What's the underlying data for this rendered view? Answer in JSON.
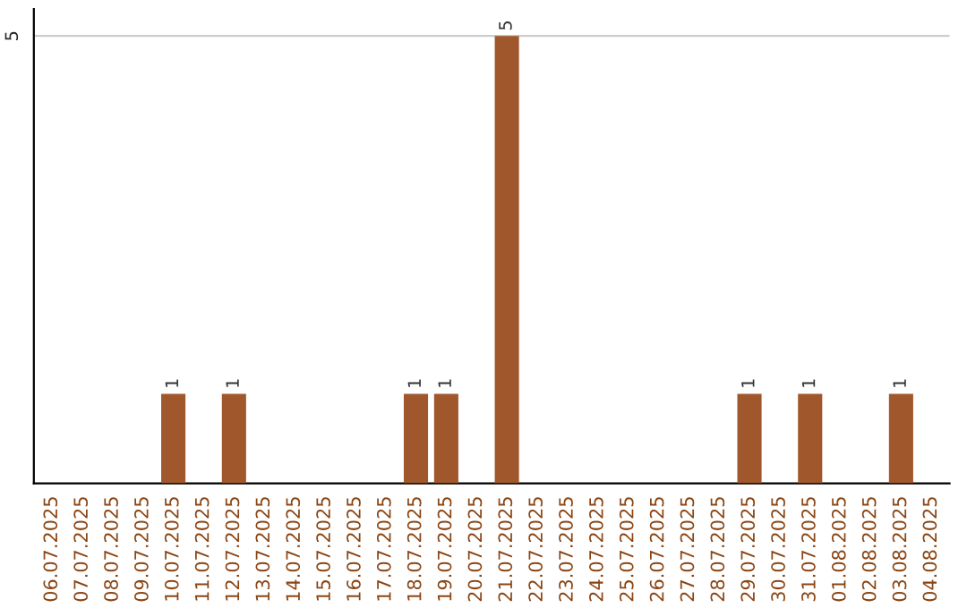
{
  "chart_data": {
    "type": "bar",
    "categories": [
      "06.07.2025",
      "07.07.2025",
      "08.07.2025",
      "09.07.2025",
      "10.07.2025",
      "11.07.2025",
      "12.07.2025",
      "13.07.2025",
      "14.07.2025",
      "15.07.2025",
      "16.07.2025",
      "17.07.2025",
      "18.07.2025",
      "19.07.2025",
      "20.07.2025",
      "21.07.2025",
      "22.07.2025",
      "23.07.2025",
      "24.07.2025",
      "25.07.2025",
      "26.07.2025",
      "27.07.2025",
      "28.07.2025",
      "29.07.2025",
      "30.07.2025",
      "31.07.2025",
      "01.08.2025",
      "02.08.2025",
      "03.08.2025",
      "04.08.2025"
    ],
    "values": [
      0,
      0,
      0,
      0,
      1,
      0,
      1,
      0,
      0,
      0,
      0,
      0,
      1,
      1,
      0,
      5,
      0,
      0,
      0,
      0,
      0,
      0,
      0,
      1,
      0,
      1,
      0,
      0,
      1,
      0
    ],
    "value_labels": [
      null,
      null,
      null,
      null,
      "1",
      null,
      "1",
      null,
      null,
      null,
      null,
      null,
      "1",
      "1",
      null,
      "5",
      null,
      null,
      null,
      null,
      null,
      null,
      null,
      "1",
      null,
      "1",
      null,
      null,
      "1",
      null
    ],
    "color": "#a0572b",
    "ylim": [
      0,
      5.3
    ],
    "yticks": [
      5
    ],
    "grid": "y"
  }
}
